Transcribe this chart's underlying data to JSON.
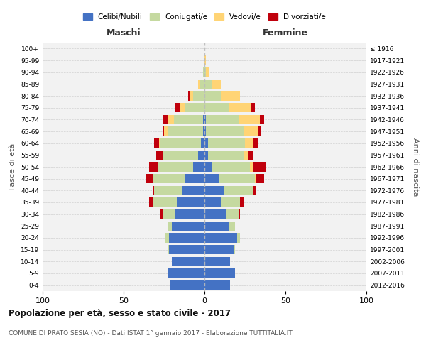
{
  "age_groups": [
    "0-4",
    "5-9",
    "10-14",
    "15-19",
    "20-24",
    "25-29",
    "30-34",
    "35-39",
    "40-44",
    "45-49",
    "50-54",
    "55-59",
    "60-64",
    "65-69",
    "70-74",
    "75-79",
    "80-84",
    "85-89",
    "90-94",
    "95-99",
    "100+"
  ],
  "birth_years": [
    "2012-2016",
    "2007-2011",
    "2002-2006",
    "1997-2001",
    "1992-1996",
    "1987-1991",
    "1982-1986",
    "1977-1981",
    "1972-1976",
    "1967-1971",
    "1962-1966",
    "1957-1961",
    "1952-1956",
    "1947-1951",
    "1942-1946",
    "1937-1941",
    "1932-1936",
    "1927-1931",
    "1922-1926",
    "1917-1921",
    "≤ 1916"
  ],
  "maschi": {
    "celibi": [
      21,
      23,
      20,
      22,
      22,
      20,
      18,
      17,
      14,
      12,
      7,
      4,
      2,
      1,
      1,
      0,
      0,
      0,
      0,
      0,
      0
    ],
    "coniugati": [
      0,
      0,
      0,
      1,
      2,
      3,
      8,
      15,
      17,
      20,
      22,
      22,
      25,
      22,
      18,
      12,
      7,
      3,
      1,
      0,
      0
    ],
    "vedovi": [
      0,
      0,
      0,
      0,
      0,
      0,
      0,
      0,
      0,
      0,
      0,
      0,
      1,
      2,
      4,
      3,
      2,
      1,
      0,
      0,
      0
    ],
    "divorziati": [
      0,
      0,
      0,
      0,
      0,
      0,
      1,
      2,
      1,
      4,
      5,
      4,
      3,
      1,
      3,
      3,
      1,
      0,
      0,
      0,
      0
    ]
  },
  "femmine": {
    "nubili": [
      16,
      19,
      16,
      18,
      20,
      15,
      13,
      10,
      12,
      9,
      5,
      2,
      2,
      1,
      1,
      0,
      0,
      0,
      0,
      0,
      0
    ],
    "coniugate": [
      0,
      0,
      0,
      1,
      2,
      4,
      8,
      12,
      18,
      22,
      23,
      22,
      23,
      23,
      20,
      15,
      10,
      5,
      1,
      0,
      0
    ],
    "vedove": [
      0,
      0,
      0,
      0,
      0,
      0,
      0,
      0,
      0,
      1,
      2,
      3,
      5,
      9,
      13,
      14,
      12,
      5,
      2,
      1,
      0
    ],
    "divorziate": [
      0,
      0,
      0,
      0,
      0,
      0,
      1,
      2,
      2,
      5,
      8,
      3,
      3,
      2,
      3,
      2,
      0,
      0,
      0,
      0,
      0
    ]
  },
  "colors": {
    "celibi_nubili": "#4472C4",
    "coniugati": "#c5d9a0",
    "vedovi": "#FFD475",
    "divorziati": "#C0000C"
  },
  "title": "Popolazione per età, sesso e stato civile - 2017",
  "subtitle": "COMUNE DI PRATO SESIA (NO) - Dati ISTAT 1° gennaio 2017 - Elaborazione TUTTITALIA.IT",
  "xlim": 100,
  "xlabel_left": "Maschi",
  "xlabel_right": "Femmine",
  "ylabel_left": "Fasce di età",
  "ylabel_right": "Anni di nascita",
  "legend_labels": [
    "Celibi/Nubili",
    "Coniugati/e",
    "Vedovi/e",
    "Divorziati/e"
  ],
  "background_color": "#ffffff",
  "plot_bg_color": "#f2f2f2",
  "grid_color": "#cccccc"
}
